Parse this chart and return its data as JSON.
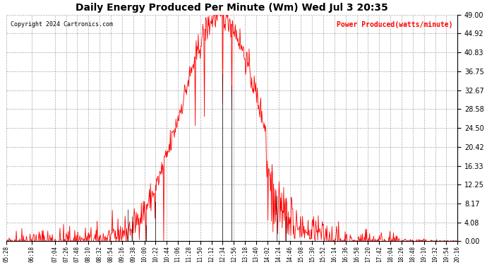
{
  "title": "Daily Energy Produced Per Minute (Wm) Wed Jul 3 20:35",
  "copyright": "Copyright 2024 Cartronics.com",
  "legend_label": "Power Produced(watts/minute)",
  "yticks": [
    0.0,
    4.08,
    8.17,
    12.25,
    16.33,
    20.42,
    24.5,
    28.58,
    32.67,
    36.75,
    40.83,
    44.92,
    49.0
  ],
  "ymin": 0.0,
  "ymax": 49.0,
  "line_color": "red",
  "bg_color": "white",
  "grid_color": "#aaaaaa",
  "title_color": "black",
  "copyright_color": "black",
  "legend_color": "red",
  "xtick_interval_minutes": 8
}
